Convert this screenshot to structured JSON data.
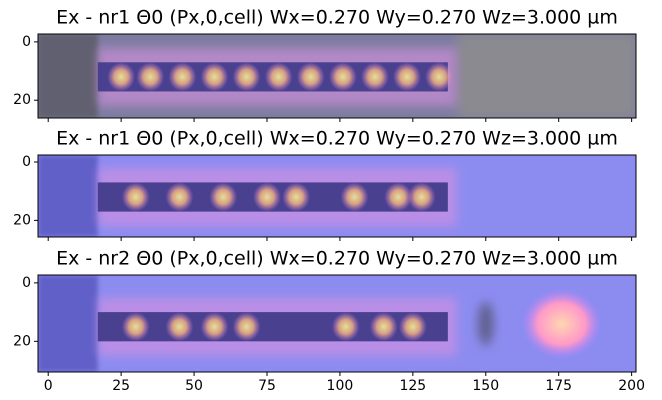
{
  "chart_data": [
    {
      "type": "image",
      "title": "Ex - nr1 Θ0 (Px,0,cell) Wx=0.270 Wy=0.270 Wz=3.000 µm",
      "xlim": [
        -3.5,
        201.5
      ],
      "ylim": [
        26.1,
        -2.7
      ],
      "yticks": [
        0,
        20
      ]
    },
    {
      "type": "image",
      "title": "Ex - nr1 Θ0 (Px,0,cell) Wx=0.270 Wy=0.270 Wz=3.000 µm",
      "xlim": [
        -3.5,
        201.5
      ],
      "ylim": [
        25.7,
        -2.4
      ],
      "yticks": [
        0,
        20
      ]
    },
    {
      "type": "image",
      "title": "Ex - nr2 Θ0 (Px,0,cell) Wx=0.270 Wy=0.270 Wz=3.000 µm",
      "xlim": [
        -3.5,
        201.5
      ],
      "ylim": [
        30.5,
        -2.7
      ],
      "yticks": [
        0,
        20
      ],
      "xticks": [
        0,
        25,
        50,
        75,
        100,
        125,
        150,
        175,
        200
      ]
    }
  ]
}
